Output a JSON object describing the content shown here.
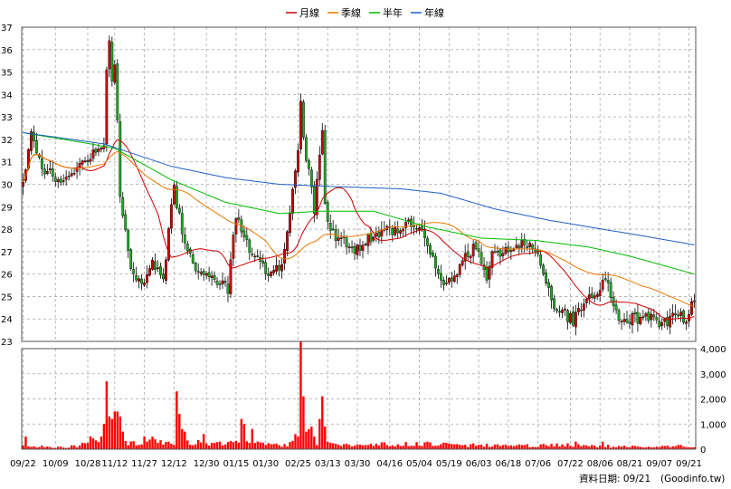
{
  "legend": [
    {
      "label": "月線",
      "color": "#cc0000"
    },
    {
      "label": "季線",
      "color": "#e87800"
    },
    {
      "label": "半年",
      "color": "#00bb00"
    },
    {
      "label": "年線",
      "color": "#1f5fc4"
    }
  ],
  "footer": {
    "date_label": "資料日期: 09/21",
    "source": "(Goodinfo.tw)"
  },
  "colors": {
    "up": "#cc0000",
    "down": "#22aa22",
    "volume": "#ff0000",
    "grid": "#a8a8a8"
  },
  "chart_data": [
    {
      "type": "candlestick",
      "title": "",
      "bars": 250,
      "x_tick_labels": [
        "09/22",
        "10/09",
        "10/28",
        "11/12",
        "11/27",
        "12/12",
        "12/30",
        "01/15",
        "01/30",
        "02/25",
        "03/13",
        "03/30",
        "04/16",
        "05/04",
        "05/19",
        "06/03",
        "06/18",
        "07/06",
        "07/22",
        "08/06",
        "08/21",
        "09/07",
        "09/21"
      ],
      "x_tick_index": [
        0,
        12,
        24,
        34,
        45,
        56,
        68,
        79,
        90,
        102,
        113,
        124,
        136,
        147,
        158,
        169,
        180,
        191,
        203,
        214,
        225,
        236,
        247
      ],
      "ylim": [
        23,
        37
      ],
      "y_ticks": [
        23,
        24,
        25,
        26,
        27,
        28,
        29,
        30,
        31,
        32,
        33,
        34,
        35,
        36,
        37
      ],
      "grid": true,
      "price_anchors": [
        [
          0,
          30.2
        ],
        [
          3,
          32.1
        ],
        [
          8,
          30.6
        ],
        [
          14,
          30.2
        ],
        [
          20,
          30.6
        ],
        [
          26,
          31.3
        ],
        [
          30,
          31.8
        ],
        [
          31,
          34.4
        ],
        [
          34,
          35.5
        ],
        [
          35,
          32.8
        ],
        [
          36,
          29.4
        ],
        [
          40,
          26.3
        ],
        [
          44,
          25.6
        ],
        [
          48,
          26.4
        ],
        [
          52,
          25.8
        ],
        [
          56,
          29.9
        ],
        [
          59,
          27.8
        ],
        [
          64,
          26.2
        ],
        [
          70,
          25.9
        ],
        [
          76,
          25.3
        ],
        [
          79,
          28.7
        ],
        [
          84,
          27.1
        ],
        [
          90,
          26.1
        ],
        [
          96,
          26.2
        ],
        [
          102,
          31.6
        ],
        [
          106,
          30.8
        ],
        [
          108,
          28.8
        ],
        [
          110,
          31.2
        ],
        [
          113,
          28.2
        ],
        [
          116,
          27.6
        ],
        [
          120,
          27.3
        ],
        [
          124,
          27.1
        ],
        [
          128,
          27.5
        ],
        [
          133,
          27.9
        ],
        [
          138,
          28.0
        ],
        [
          144,
          28.3
        ],
        [
          148,
          27.9
        ],
        [
          152,
          26.8
        ],
        [
          156,
          25.4
        ],
        [
          160,
          25.9
        ],
        [
          164,
          26.7
        ],
        [
          168,
          27.3
        ],
        [
          172,
          25.5
        ],
        [
          174,
          26.8
        ],
        [
          178,
          27.0
        ],
        [
          183,
          27.4
        ],
        [
          188,
          27.3
        ],
        [
          191,
          26.7
        ],
        [
          196,
          24.8
        ],
        [
          201,
          24.2
        ],
        [
          204,
          23.9
        ],
        [
          208,
          24.7
        ],
        [
          212,
          25.1
        ],
        [
          216,
          25.8
        ],
        [
          220,
          24.2
        ],
        [
          226,
          24.0
        ],
        [
          232,
          24.0
        ],
        [
          238,
          23.8
        ],
        [
          242,
          24.2
        ],
        [
          246,
          24.0
        ],
        [
          249,
          24.9
        ]
      ],
      "spikes": [
        [
          31,
          35.1
        ],
        [
          32,
          36.4
        ],
        [
          33,
          34.6
        ],
        [
          103,
          33.7
        ],
        [
          104,
          32.1
        ],
        [
          111,
          32.4
        ]
      ],
      "volume": {
        "ylim": [
          0,
          4000
        ],
        "y_ticks": [
          0,
          1000,
          2000,
          3000,
          4000
        ],
        "y_tick_labels": [
          "0",
          "1,000",
          "2,000",
          "3,000",
          "4,000"
        ],
        "base_anchors": [
          [
            0,
            150
          ],
          [
            10,
            70
          ],
          [
            20,
            110
          ],
          [
            30,
            600
          ],
          [
            40,
            250
          ],
          [
            50,
            300
          ],
          [
            60,
            250
          ],
          [
            70,
            260
          ],
          [
            80,
            230
          ],
          [
            95,
            180
          ],
          [
            100,
            250
          ],
          [
            110,
            300
          ],
          [
            120,
            150
          ],
          [
            140,
            200
          ],
          [
            160,
            170
          ],
          [
            180,
            130
          ],
          [
            200,
            160
          ],
          [
            220,
            110
          ],
          [
            240,
            110
          ],
          [
            249,
            140
          ]
        ],
        "spikes": [
          [
            1,
            500
          ],
          [
            27,
            350
          ],
          [
            28,
            280
          ],
          [
            29,
            500
          ],
          [
            30,
            1000
          ],
          [
            31,
            2700
          ],
          [
            32,
            1300
          ],
          [
            33,
            1200
          ],
          [
            34,
            1500
          ],
          [
            35,
            1500
          ],
          [
            36,
            1300
          ],
          [
            37,
            700
          ],
          [
            45,
            500
          ],
          [
            48,
            500
          ],
          [
            57,
            2300
          ],
          [
            58,
            1400
          ],
          [
            59,
            800
          ],
          [
            60,
            700
          ],
          [
            67,
            600
          ],
          [
            81,
            1200
          ],
          [
            82,
            1000
          ],
          [
            85,
            800
          ],
          [
            101,
            600
          ],
          [
            102,
            500
          ],
          [
            103,
            4300
          ],
          [
            104,
            2100
          ],
          [
            105,
            700
          ],
          [
            106,
            800
          ],
          [
            107,
            900
          ],
          [
            108,
            500
          ],
          [
            110,
            1200
          ],
          [
            111,
            2100
          ],
          [
            112,
            900
          ],
          [
            150,
            300
          ],
          [
            205,
            300
          ],
          [
            215,
            300
          ]
        ]
      },
      "moving_averages": {
        "monthly_window": 20,
        "quarterly_window": 60,
        "half_year_anchors": [
          [
            0,
            32.3
          ],
          [
            25,
            31.8
          ],
          [
            34,
            31.6
          ],
          [
            55,
            30.2
          ],
          [
            75,
            29.2
          ],
          [
            95,
            28.7
          ],
          [
            110,
            28.8
          ],
          [
            130,
            28.8
          ],
          [
            150,
            28.1
          ],
          [
            170,
            27.6
          ],
          [
            190,
            27.5
          ],
          [
            210,
            27.2
          ],
          [
            225,
            26.8
          ],
          [
            240,
            26.3
          ],
          [
            249,
            26.0
          ]
        ],
        "yearly_anchors": [
          [
            0,
            32.3
          ],
          [
            30,
            31.8
          ],
          [
            55,
            30.8
          ],
          [
            75,
            30.3
          ],
          [
            95,
            30.0
          ],
          [
            115,
            29.9
          ],
          [
            140,
            29.8
          ],
          [
            155,
            29.6
          ],
          [
            175,
            28.9
          ],
          [
            195,
            28.4
          ],
          [
            215,
            28.0
          ],
          [
            230,
            27.7
          ],
          [
            249,
            27.3
          ]
        ]
      }
    }
  ]
}
